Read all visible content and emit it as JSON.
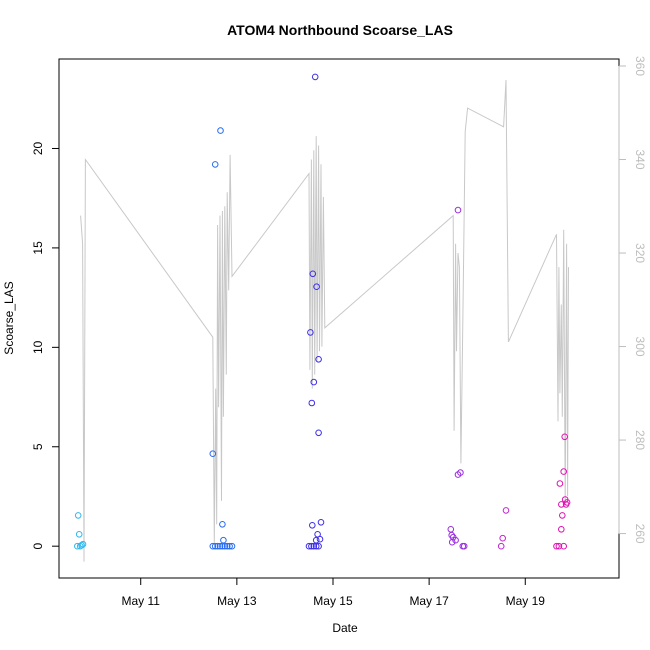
{
  "chart_data": {
    "type": "scatter",
    "title": "ATOM4 Northbound Scoarse_LAS",
    "xlabel": "Date",
    "ylabel": "Scoarse_LAS",
    "x_unit": "days in May",
    "xlim": [
      9.3,
      20.95
    ],
    "ylim": [
      -1.6,
      24.5
    ],
    "y2lim": [
      250.5,
      361.5
    ],
    "x_ticks": [
      {
        "value": 11,
        "label": "May 11"
      },
      {
        "value": 13,
        "label": "May 13"
      },
      {
        "value": 15,
        "label": "May 15"
      },
      {
        "value": 17,
        "label": "May 17"
      },
      {
        "value": 19,
        "label": "May 19"
      }
    ],
    "y_ticks": [
      0,
      5,
      10,
      15,
      20
    ],
    "y2_ticks": [
      260,
      280,
      300,
      320,
      340,
      360
    ],
    "grid": false,
    "colors": {
      "line": "#c8c8c8",
      "axis": "#000000",
      "y2_axis": "#bdbdbd"
    },
    "series": [
      {
        "kind": "line",
        "axis": "right",
        "points": [
          [
            9.75,
            328
          ],
          [
            9.79,
            322
          ],
          [
            9.82,
            254
          ],
          [
            9.85,
            340
          ],
          [
            12.5,
            302
          ],
          [
            12.53,
            258
          ],
          [
            12.56,
            291
          ],
          [
            12.58,
            262
          ],
          [
            12.6,
            326
          ],
          [
            12.62,
            287
          ],
          [
            12.65,
            328
          ],
          [
            12.68,
            267
          ],
          [
            12.7,
            329
          ],
          [
            12.72,
            285
          ],
          [
            12.75,
            330
          ],
          [
            12.78,
            294
          ],
          [
            12.8,
            333
          ],
          [
            12.83,
            312
          ],
          [
            12.86,
            341
          ],
          [
            12.9,
            315
          ],
          [
            14.5,
            337
          ],
          [
            14.52,
            295
          ],
          [
            14.55,
            340
          ],
          [
            14.57,
            291
          ],
          [
            14.6,
            342
          ],
          [
            14.62,
            294
          ],
          [
            14.65,
            345
          ],
          [
            14.67,
            297
          ],
          [
            14.7,
            343
          ],
          [
            14.72,
            299
          ],
          [
            14.75,
            339
          ],
          [
            14.77,
            300
          ],
          [
            14.8,
            332
          ],
          [
            14.83,
            304
          ],
          [
            17.5,
            328
          ],
          [
            17.52,
            282
          ],
          [
            17.55,
            322
          ],
          [
            17.57,
            299
          ],
          [
            17.6,
            320
          ],
          [
            17.63,
            317
          ],
          [
            17.66,
            275
          ],
          [
            17.7,
            305
          ],
          [
            17.75,
            346
          ],
          [
            17.8,
            351
          ],
          [
            18.55,
            347
          ],
          [
            18.6,
            357
          ],
          [
            18.65,
            301
          ],
          [
            19.65,
            324
          ],
          [
            19.68,
            284
          ],
          [
            19.7,
            317
          ],
          [
            19.72,
            290
          ],
          [
            19.75,
            309
          ],
          [
            19.77,
            285
          ],
          [
            19.8,
            325
          ],
          [
            19.83,
            266
          ],
          [
            19.86,
            322
          ],
          [
            19.88,
            268
          ],
          [
            19.9,
            317
          ]
        ]
      },
      {
        "kind": "scatter",
        "axis": "left",
        "points": [
          [
            9.7,
            1.55,
            "#2fb7ef"
          ],
          [
            9.72,
            0.6,
            "#2fb7ef"
          ],
          [
            9.68,
            0.0,
            "#2fb7ef"
          ],
          [
            9.74,
            0.0,
            "#2fb7ef"
          ],
          [
            9.77,
            0.05,
            "#2fb7ef"
          ],
          [
            9.8,
            0.1,
            "#2fb7ef"
          ],
          [
            12.5,
            4.65,
            "#2a6df2"
          ],
          [
            12.55,
            19.2,
            "#2a6df2"
          ],
          [
            12.66,
            20.9,
            "#2a6df2"
          ],
          [
            12.7,
            1.1,
            "#2a6df2"
          ],
          [
            12.72,
            0.3,
            "#2a6df2"
          ],
          [
            12.5,
            0.0,
            "#2a6df2"
          ],
          [
            12.55,
            0.0,
            "#2a6df2"
          ],
          [
            12.6,
            0.0,
            "#2a6df2"
          ],
          [
            12.65,
            0.0,
            "#2a6df2"
          ],
          [
            12.7,
            0.0,
            "#2a6df2"
          ],
          [
            12.75,
            0.0,
            "#2a6df2"
          ],
          [
            12.8,
            0.0,
            "#2a6df2"
          ],
          [
            12.85,
            0.0,
            "#2a6df2"
          ],
          [
            12.9,
            0.0,
            "#2a6df2"
          ],
          [
            14.53,
            10.75,
            "#3e2fe8"
          ],
          [
            14.57,
            1.05,
            "#3e2fe8"
          ],
          [
            14.58,
            13.7,
            "#3e2fe8"
          ],
          [
            14.56,
            7.2,
            "#3e2fe8"
          ],
          [
            14.6,
            8.25,
            "#3e2fe8"
          ],
          [
            14.63,
            23.6,
            "#3e2fe8"
          ],
          [
            14.66,
            13.05,
            "#3e2fe8"
          ],
          [
            14.7,
            9.4,
            "#3e2fe8"
          ],
          [
            14.7,
            5.7,
            "#3e2fe8"
          ],
          [
            14.75,
            1.2,
            "#3e2fe8"
          ],
          [
            14.68,
            0.6,
            "#3e2fe8"
          ],
          [
            14.65,
            0.3,
            "#3e2fe8"
          ],
          [
            14.73,
            0.35,
            "#3e2fe8"
          ],
          [
            14.5,
            0.0,
            "#3e2fe8"
          ],
          [
            14.55,
            0.0,
            "#3e2fe8"
          ],
          [
            14.6,
            0.0,
            "#3e2fe8"
          ],
          [
            14.65,
            0.0,
            "#3e2fe8"
          ],
          [
            14.7,
            0.0,
            "#3e2fe8"
          ],
          [
            17.45,
            0.85,
            "#9a2ee0"
          ],
          [
            17.47,
            0.55,
            "#9a2ee0"
          ],
          [
            17.48,
            0.2,
            "#9a2ee0"
          ],
          [
            17.5,
            0.45,
            "#9a2ee0"
          ],
          [
            17.55,
            0.3,
            "#9a2ee0"
          ],
          [
            17.6,
            16.9,
            "#9a2ee0"
          ],
          [
            17.6,
            3.6,
            "#9a2ee0"
          ],
          [
            17.65,
            3.7,
            "#9a2ee0"
          ],
          [
            17.7,
            0.0,
            "#9a2ee0"
          ],
          [
            17.73,
            0.0,
            "#9a2ee0"
          ],
          [
            18.5,
            0.0,
            "#c623d6"
          ],
          [
            18.53,
            0.4,
            "#c623d6"
          ],
          [
            18.6,
            1.8,
            "#c623d6"
          ],
          [
            19.65,
            0.0,
            "#e012b3"
          ],
          [
            19.7,
            0.0,
            "#e012b3"
          ],
          [
            19.72,
            3.15,
            "#e012b3"
          ],
          [
            19.75,
            0.85,
            "#e012b3"
          ],
          [
            19.75,
            2.1,
            "#e012b3"
          ],
          [
            19.77,
            1.55,
            "#e012b3"
          ],
          [
            19.8,
            3.75,
            "#e012b3"
          ],
          [
            19.82,
            5.5,
            "#e012b3"
          ],
          [
            19.83,
            2.35,
            "#e012b3"
          ],
          [
            19.85,
            2.1,
            "#e012b3"
          ],
          [
            19.87,
            2.2,
            "#e012b3"
          ],
          [
            19.8,
            0.0,
            "#e012b3"
          ]
        ]
      }
    ]
  }
}
